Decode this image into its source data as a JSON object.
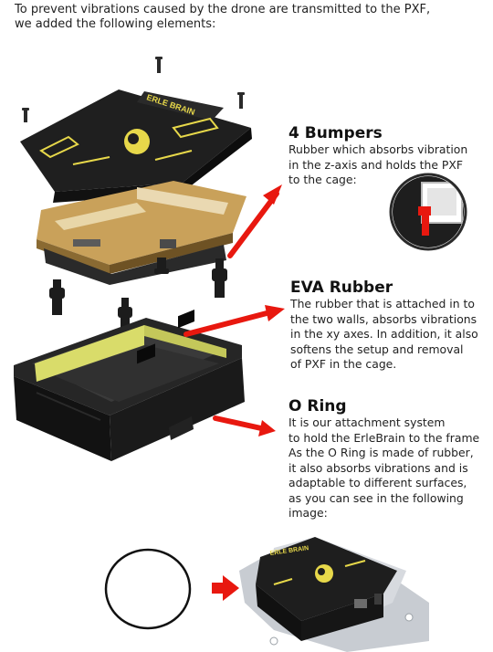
{
  "intro": {
    "line1": "To prevent vibrations caused by the drone are transmitted to the PXF,",
    "line2": "we added the following elements:"
  },
  "bumpers": {
    "title": "4 Bumpers",
    "lines": [
      "Rubber which absorbs vibration",
      "in the z-axis and holds the PXF",
      "to the cage:"
    ]
  },
  "eva": {
    "title": "EVA Rubber",
    "lines": [
      "The rubber that is attached in to",
      "the two walls, absorbs vibrations",
      "in the xy axes. In addition, it also",
      "softens the setup and removal",
      "of PXF in the cage."
    ]
  },
  "oring": {
    "title": "O Ring",
    "lines": [
      "It is our attachment system",
      "to hold the ErleBrain to the frame",
      "As the O Ring is made of rubber,",
      "it also absorbs vibrations and is",
      "adaptable to different surfaces,",
      "as you can see in the following",
      "image:"
    ]
  },
  "board": {
    "brand_label": "ERLE BRAIN"
  },
  "colors": {
    "accent_red": "#e8180f",
    "case_black": "#1a1a1a",
    "eva_yellow": "#d9dc6a",
    "board_yellow": "#e7d84a",
    "pcb_tan": "#c9a15a"
  }
}
